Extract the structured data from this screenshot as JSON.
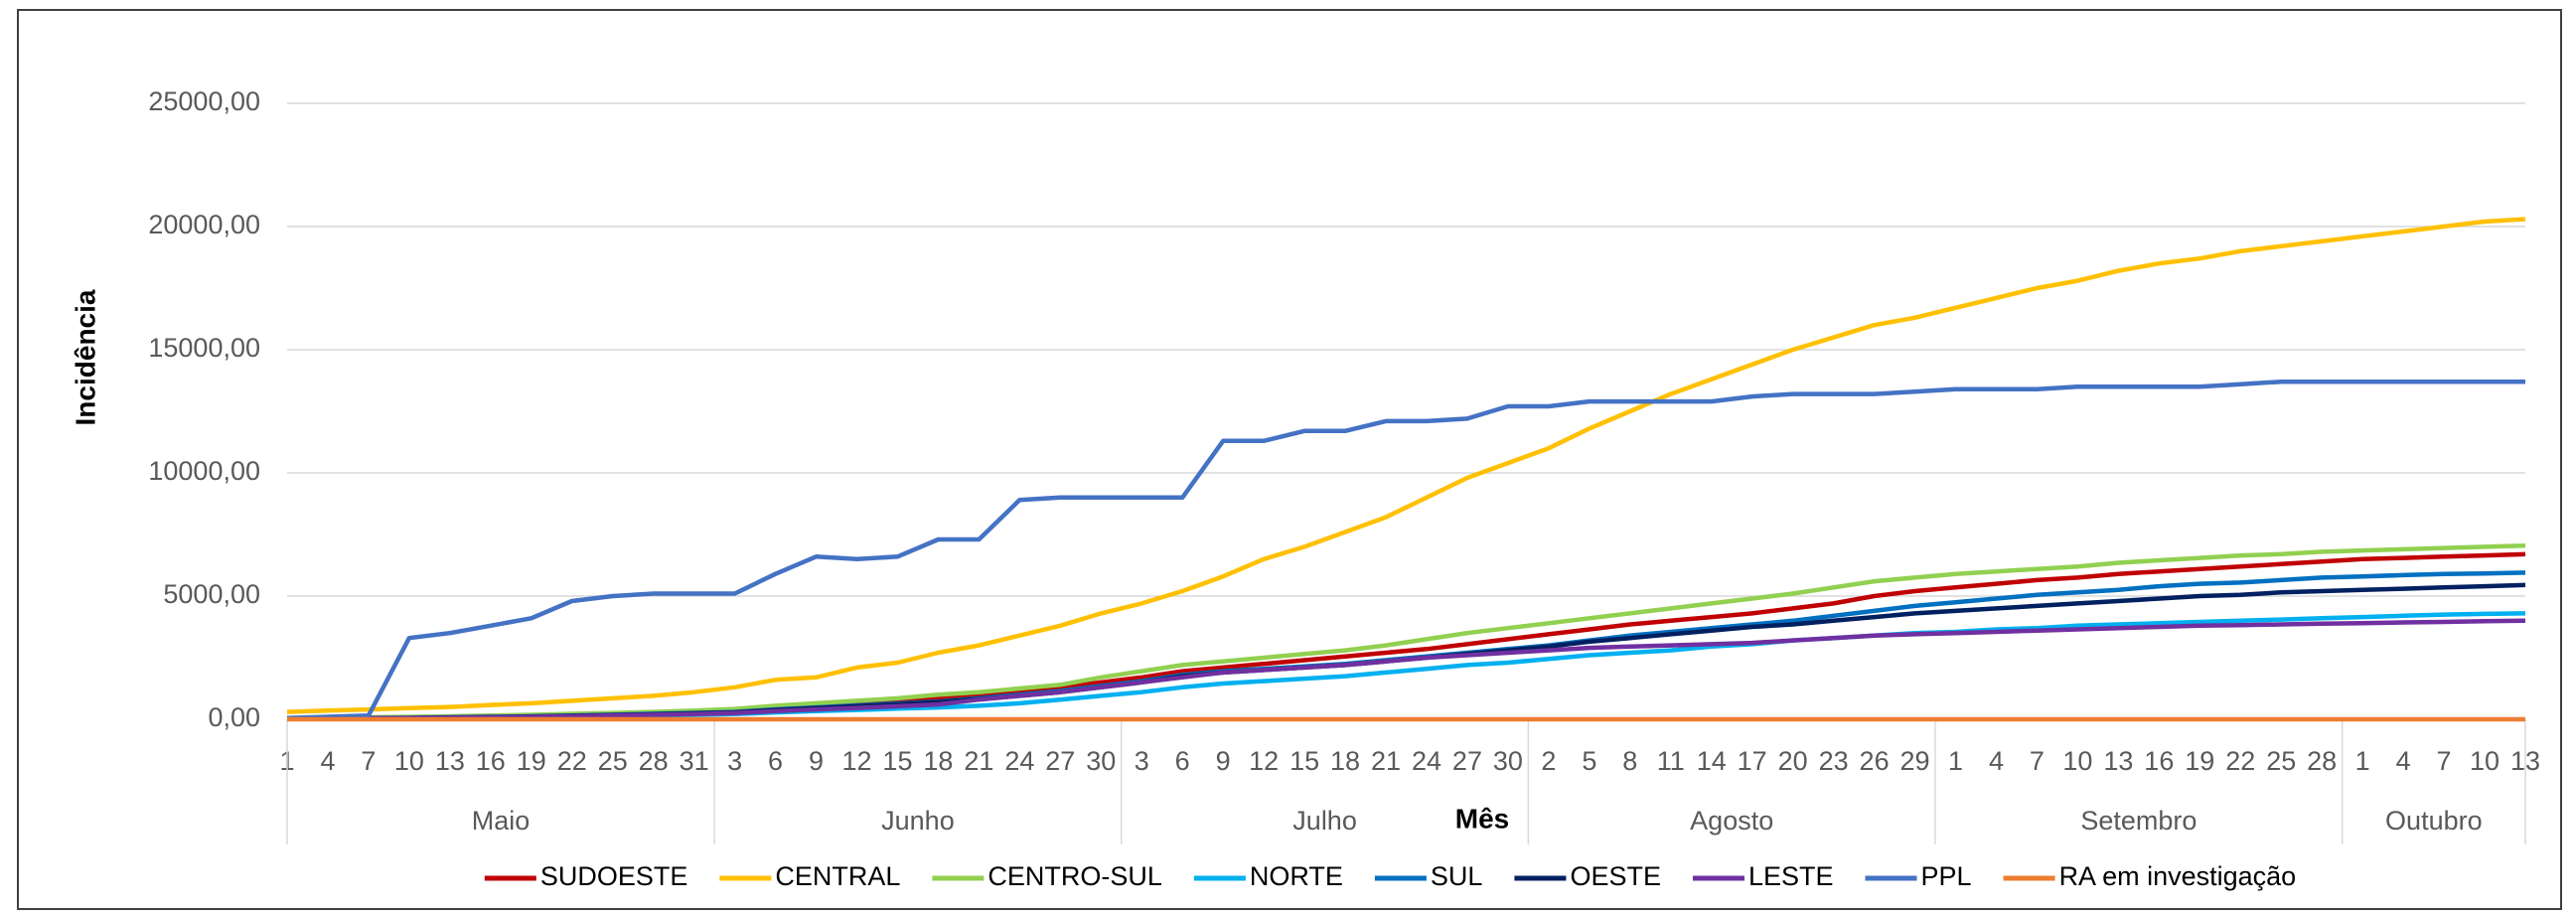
{
  "chart_data": {
    "type": "line",
    "y_label": "Incidência",
    "x_label": "Mês",
    "categories": [
      "1",
      "4",
      "7",
      "10",
      "13",
      "16",
      "19",
      "22",
      "25",
      "28",
      "31",
      "3",
      "6",
      "9",
      "12",
      "15",
      "18",
      "21",
      "24",
      "27",
      "30",
      "3",
      "6",
      "9",
      "12",
      "15",
      "18",
      "21",
      "24",
      "27",
      "30",
      "2",
      "5",
      "8",
      "11",
      "14",
      "17",
      "20",
      "23",
      "26",
      "29",
      "1",
      "4",
      "7",
      "10",
      "13",
      "16",
      "19",
      "22",
      "25",
      "28",
      "1",
      "4",
      "7",
      "10",
      "13"
    ],
    "x_groups": [
      "Maio",
      null,
      null,
      null,
      null,
      null,
      null,
      null,
      null,
      null,
      null,
      "Junho",
      null,
      null,
      null,
      null,
      null,
      null,
      null,
      null,
      null,
      "Julho",
      null,
      null,
      null,
      null,
      null,
      null,
      null,
      null,
      null,
      "Agosto",
      null,
      null,
      null,
      null,
      null,
      null,
      null,
      null,
      null,
      "Setembro",
      null,
      null,
      null,
      null,
      null,
      null,
      null,
      null,
      null,
      "Outubro",
      null,
      null,
      null,
      null
    ],
    "series": [
      {
        "name": "SUDOESTE",
        "color": "#c00000",
        "values": [
          40,
          50,
          60,
          80,
          100,
          120,
          150,
          180,
          220,
          260,
          300,
          350,
          450,
          550,
          650,
          750,
          850,
          1000,
          1150,
          1300,
          1500,
          1700,
          1950,
          2100,
          2250,
          2400,
          2550,
          2700,
          2850,
          3050,
          3250,
          3450,
          3650,
          3850,
          4000,
          4150,
          4300,
          4500,
          4700,
          5000,
          5200,
          5350,
          5500,
          5650,
          5750,
          5900,
          6000,
          6100,
          6200,
          6300,
          6400,
          6500,
          6550,
          6600,
          6650,
          6700
        ]
      },
      {
        "name": "CENTRAL",
        "color": "#ffc000",
        "values": [
          300,
          350,
          400,
          450,
          500,
          580,
          650,
          750,
          850,
          950,
          1100,
          1300,
          1600,
          1700,
          2100,
          2300,
          2700,
          3000,
          3400,
          3800,
          4300,
          4700,
          5200,
          5800,
          6500,
          7000,
          7600,
          8200,
          9000,
          9800,
          10400,
          11000,
          11800,
          12500,
          13200,
          13800,
          14400,
          15000,
          15500,
          16000,
          16300,
          16700,
          17100,
          17500,
          17800,
          18200,
          18500,
          18700,
          19000,
          19200,
          19400,
          19600,
          19800,
          20000,
          20200,
          20300
        ]
      },
      {
        "name": "CENTRO-SUL",
        "color": "#92d050",
        "values": [
          50,
          60,
          80,
          100,
          120,
          150,
          180,
          220,
          260,
          300,
          350,
          420,
          550,
          650,
          750,
          850,
          1000,
          1100,
          1250,
          1400,
          1700,
          1950,
          2200,
          2350,
          2500,
          2650,
          2800,
          3000,
          3250,
          3500,
          3700,
          3900,
          4100,
          4300,
          4500,
          4700,
          4900,
          5100,
          5350,
          5600,
          5750,
          5900,
          6000,
          6100,
          6200,
          6350,
          6450,
          6550,
          6650,
          6700,
          6800,
          6850,
          6900,
          6950,
          7000,
          7050
        ]
      },
      {
        "name": "NORTE",
        "color": "#00b0f0",
        "values": [
          10,
          20,
          30,
          40,
          50,
          60,
          80,
          100,
          120,
          150,
          180,
          210,
          280,
          330,
          380,
          430,
          480,
          550,
          650,
          800,
          950,
          1100,
          1300,
          1450,
          1550,
          1650,
          1750,
          1900,
          2050,
          2200,
          2300,
          2450,
          2600,
          2700,
          2800,
          2950,
          3050,
          3200,
          3300,
          3400,
          3500,
          3550,
          3650,
          3700,
          3800,
          3850,
          3900,
          3950,
          4000,
          4050,
          4100,
          4150,
          4200,
          4250,
          4280,
          4300
        ]
      },
      {
        "name": "SUL",
        "color": "#0070c0",
        "values": [
          30,
          40,
          50,
          60,
          80,
          100,
          120,
          150,
          180,
          220,
          260,
          300,
          400,
          480,
          560,
          640,
          720,
          850,
          1000,
          1150,
          1350,
          1550,
          1800,
          1950,
          2050,
          2150,
          2250,
          2400,
          2550,
          2700,
          2850,
          3000,
          3200,
          3400,
          3550,
          3700,
          3850,
          4000,
          4200,
          4400,
          4600,
          4750,
          4900,
          5050,
          5150,
          5250,
          5400,
          5500,
          5550,
          5650,
          5750,
          5800,
          5850,
          5900,
          5920,
          5950
        ]
      },
      {
        "name": "OESTE",
        "color": "#002060",
        "values": [
          20,
          30,
          40,
          50,
          70,
          90,
          110,
          140,
          170,
          200,
          240,
          280,
          380,
          450,
          530,
          610,
          700,
          820,
          950,
          1100,
          1300,
          1500,
          1750,
          1900,
          2000,
          2100,
          2200,
          2350,
          2500,
          2650,
          2800,
          2950,
          3150,
          3300,
          3450,
          3600,
          3750,
          3850,
          4000,
          4150,
          4300,
          4400,
          4500,
          4600,
          4700,
          4800,
          4900,
          5000,
          5050,
          5150,
          5200,
          5250,
          5300,
          5350,
          5400,
          5450
        ]
      },
      {
        "name": "LESTE",
        "color": "#7030a0",
        "values": [
          20,
          30,
          40,
          50,
          60,
          80,
          100,
          120,
          150,
          180,
          210,
          250,
          330,
          400,
          460,
          530,
          600,
          800,
          950,
          1100,
          1300,
          1500,
          1700,
          1900,
          2000,
          2100,
          2200,
          2350,
          2500,
          2600,
          2700,
          2800,
          2900,
          2950,
          3000,
          3050,
          3100,
          3200,
          3300,
          3400,
          3450,
          3500,
          3550,
          3600,
          3650,
          3700,
          3750,
          3800,
          3820,
          3850,
          3880,
          3900,
          3930,
          3950,
          3980,
          4000
        ]
      },
      {
        "name": "PPL",
        "color": "#4472c4",
        "values": [
          50,
          100,
          150,
          3300,
          3500,
          3800,
          4100,
          4800,
          5000,
          5100,
          5100,
          5100,
          5900,
          6600,
          6500,
          6600,
          7300,
          7300,
          8900,
          9000,
          9000,
          9000,
          9000,
          11300,
          11300,
          11700,
          11700,
          12100,
          12100,
          12200,
          12700,
          12700,
          12900,
          12900,
          12900,
          12900,
          13100,
          13200,
          13200,
          13200,
          13300,
          13400,
          13400,
          13400,
          13500,
          13500,
          13500,
          13500,
          13600,
          13700,
          13700,
          13700,
          13700,
          13700,
          13700,
          13700
        ]
      },
      {
        "name": "RA em investigação",
        "color": "#ed7d31",
        "values": [
          0,
          0,
          0,
          0,
          0,
          0,
          0,
          0,
          0,
          0,
          0,
          0,
          0,
          0,
          0,
          0,
          0,
          0,
          0,
          0,
          0,
          0,
          0,
          0,
          0,
          0,
          0,
          0,
          0,
          0,
          0,
          0,
          0,
          0,
          0,
          0,
          0,
          0,
          0,
          0,
          0,
          0,
          0,
          0,
          0,
          0,
          0,
          0,
          0,
          0,
          0,
          0,
          0,
          0,
          0,
          0
        ]
      }
    ],
    "ylim": [
      0,
      25000
    ],
    "yticks": [
      {
        "value": 0,
        "label": "0,00"
      },
      {
        "value": 5000,
        "label": "5000,00"
      },
      {
        "value": 10000,
        "label": "10000,00"
      },
      {
        "value": 15000,
        "label": "15000,00"
      },
      {
        "value": 20000,
        "label": "20000,00"
      },
      {
        "value": 25000,
        "label": "25000,00"
      }
    ],
    "grid": true,
    "legend": "bottom"
  }
}
